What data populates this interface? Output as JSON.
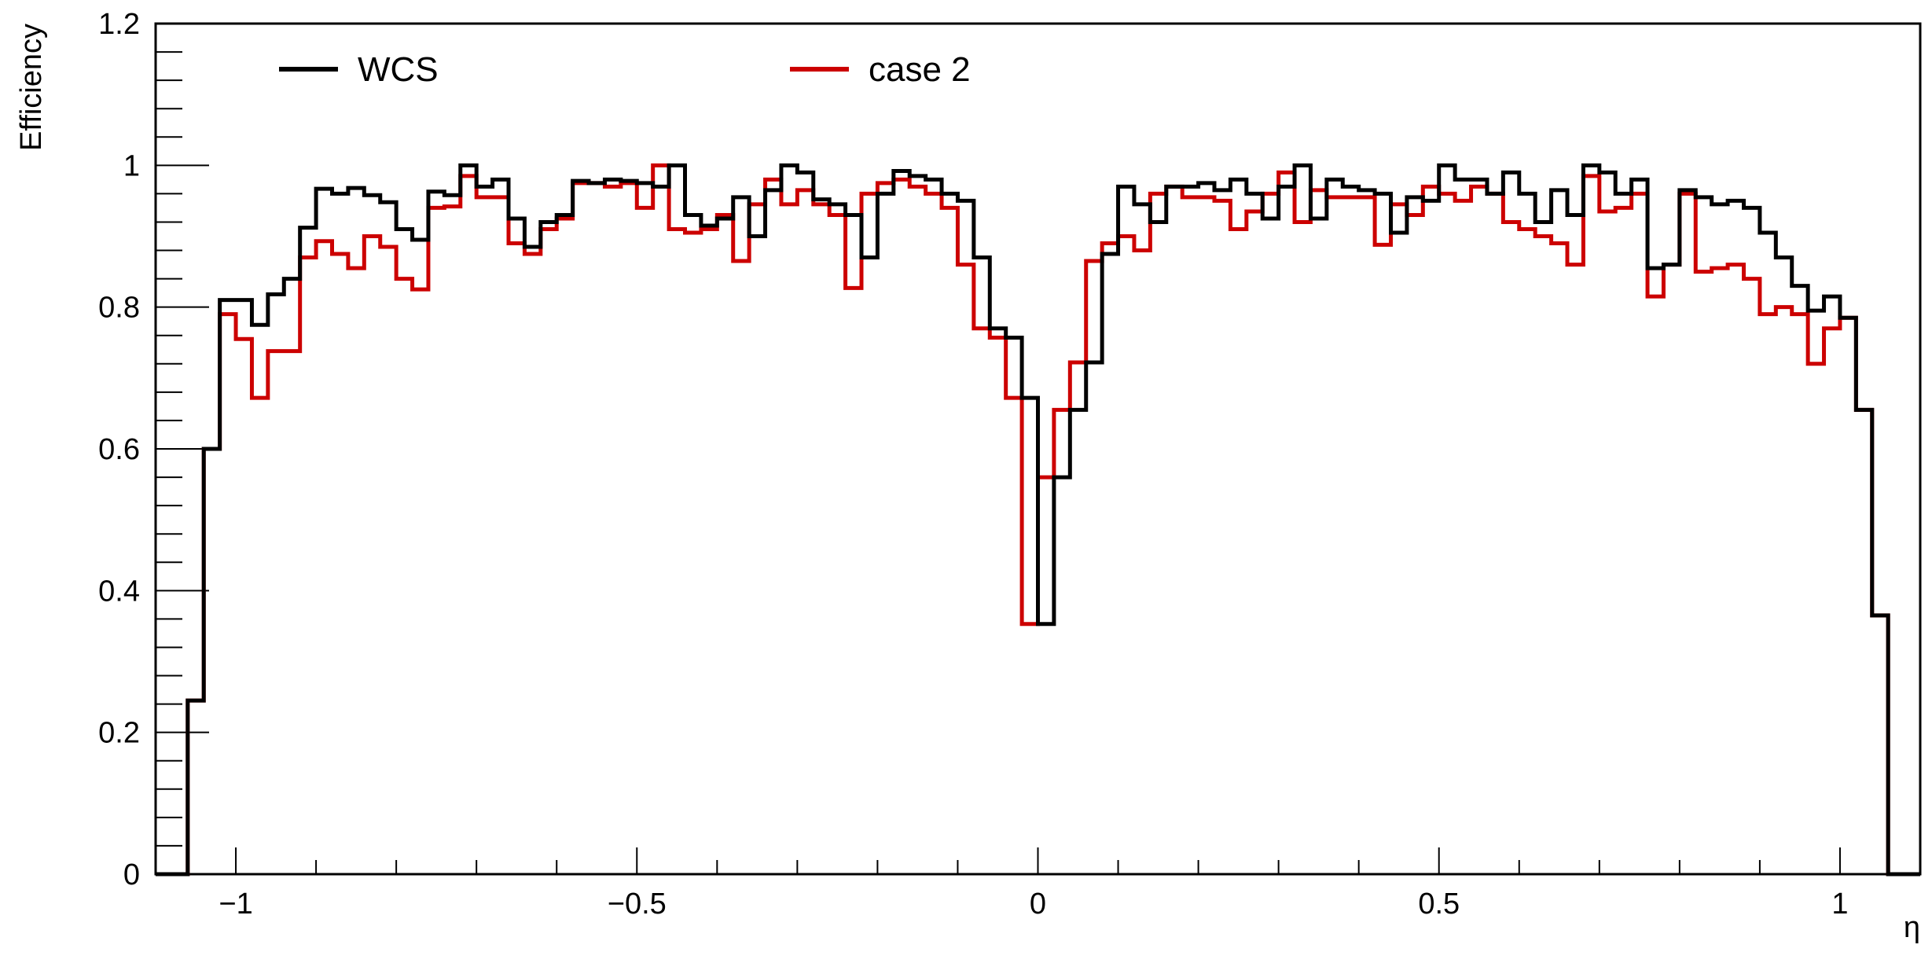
{
  "chart_data": {
    "type": "line",
    "step_histogram": true,
    "xlabel": "η",
    "ylabel": "Efficiency",
    "xlim": [
      -1.1,
      1.1
    ],
    "ylim": [
      0,
      1.2
    ],
    "x_ticks": [
      {
        "value": -1,
        "label": "−1"
      },
      {
        "value": -0.5,
        "label": "−0.5"
      },
      {
        "value": 0,
        "label": "0"
      },
      {
        "value": 0.5,
        "label": "0.5"
      },
      {
        "value": 1,
        "label": "1"
      }
    ],
    "y_ticks": [
      {
        "value": 0,
        "label": "0"
      },
      {
        "value": 0.2,
        "label": "0.2"
      },
      {
        "value": 0.4,
        "label": "0.4"
      },
      {
        "value": 0.6,
        "label": "0.6"
      },
      {
        "value": 0.8,
        "label": "0.8"
      },
      {
        "value": 1,
        "label": "1"
      },
      {
        "value": 1.2,
        "label": "1.2"
      }
    ],
    "bin_edges": [
      -1.1,
      -1.08,
      -1.06,
      -1.04,
      -1.02,
      -1.0,
      -0.98,
      -0.96,
      -0.94,
      -0.92,
      -0.9,
      -0.88,
      -0.86,
      -0.84,
      -0.82,
      -0.8,
      -0.78,
      -0.76,
      -0.74,
      -0.72,
      -0.7,
      -0.68,
      -0.66,
      -0.64,
      -0.62,
      -0.6,
      -0.58,
      -0.56,
      -0.54,
      -0.52,
      -0.5,
      -0.48,
      -0.46,
      -0.44,
      -0.42,
      -0.4,
      -0.38,
      -0.36,
      -0.34,
      -0.32,
      -0.3,
      -0.28,
      -0.26,
      -0.24,
      -0.22,
      -0.2,
      -0.18,
      -0.16,
      -0.14,
      -0.12,
      -0.1,
      -0.08,
      -0.06,
      -0.04,
      -0.02,
      0.0,
      0.02,
      0.04,
      0.06,
      0.08,
      0.1,
      0.12,
      0.14,
      0.16,
      0.18,
      0.2,
      0.22,
      0.24,
      0.26,
      0.28,
      0.3,
      0.32,
      0.34,
      0.36,
      0.38,
      0.4,
      0.42,
      0.44,
      0.46,
      0.48,
      0.5,
      0.52,
      0.54,
      0.56,
      0.58,
      0.6,
      0.62,
      0.64,
      0.66,
      0.68,
      0.7,
      0.72,
      0.74,
      0.76,
      0.78,
      0.8,
      0.82,
      0.84,
      0.86,
      0.88,
      0.9,
      0.92,
      0.94,
      0.96,
      0.98,
      1.0,
      1.02,
      1.04,
      1.06,
      1.08,
      1.1
    ],
    "series": [
      {
        "name": "WCS",
        "color": "#000000",
        "values": [
          0,
          0,
          0.245,
          0.6,
          0.81,
          0.81,
          0.775,
          0.818,
          0.84,
          0.912,
          0.967,
          0.96,
          0.968,
          0.958,
          0.948,
          0.91,
          0.895,
          0.963,
          0.958,
          1.0,
          0.97,
          0.98,
          0.925,
          0.885,
          0.92,
          0.93,
          0.978,
          0.975,
          0.98,
          0.978,
          0.975,
          0.97,
          1.0,
          0.93,
          0.915,
          0.925,
          0.955,
          0.9,
          0.965,
          1.0,
          0.99,
          0.952,
          0.945,
          0.93,
          0.87,
          0.96,
          0.992,
          0.985,
          0.98,
          0.96,
          0.95,
          0.87,
          0.77,
          0.757,
          0.672,
          0.353,
          0.56,
          0.655,
          0.722,
          0.875,
          0.97,
          0.945,
          0.92,
          0.97,
          0.97,
          0.975,
          0.965,
          0.98,
          0.96,
          0.925,
          0.97,
          1.0,
          0.925,
          0.98,
          0.97,
          0.965,
          0.96,
          0.905,
          0.955,
          0.95,
          1.0,
          0.98,
          0.98,
          0.96,
          0.99,
          0.96,
          0.92,
          0.965,
          0.93,
          1.0,
          0.99,
          0.96,
          0.98,
          0.855,
          0.86,
          0.965,
          0.955,
          0.945,
          0.95,
          0.94,
          0.905,
          0.87,
          0.83,
          0.795,
          0.815,
          0.785,
          0.655,
          0.365,
          0,
          0
        ]
      },
      {
        "name": "case 2",
        "color": "#cc0000",
        "values": [
          0,
          0,
          0.245,
          0.6,
          0.79,
          0.755,
          0.672,
          0.738,
          0.738,
          0.87,
          0.893,
          0.875,
          0.855,
          0.9,
          0.885,
          0.84,
          0.825,
          0.94,
          0.942,
          0.985,
          0.955,
          0.955,
          0.89,
          0.875,
          0.91,
          0.925,
          0.975,
          0.975,
          0.97,
          0.975,
          0.94,
          1.0,
          0.91,
          0.905,
          0.91,
          0.93,
          0.865,
          0.945,
          0.98,
          0.945,
          0.965,
          0.945,
          0.93,
          0.827,
          0.96,
          0.975,
          0.98,
          0.97,
          0.96,
          0.94,
          0.86,
          0.77,
          0.757,
          0.672,
          0.353,
          0.56,
          0.655,
          0.722,
          0.865,
          0.89,
          0.9,
          0.88,
          0.96,
          0.97,
          0.955,
          0.955,
          0.95,
          0.91,
          0.935,
          0.96,
          0.99,
          0.92,
          0.965,
          0.955,
          0.955,
          0.955,
          0.888,
          0.945,
          0.93,
          0.97,
          0.96,
          0.95,
          0.97,
          0.96,
          0.92,
          0.91,
          0.9,
          0.89,
          0.86,
          0.985,
          0.935,
          0.94,
          0.96,
          0.815,
          0.86,
          0.96,
          0.85,
          0.855,
          0.86,
          0.84,
          0.79,
          0.8,
          0.79,
          0.72,
          0.77,
          0.785,
          0.655,
          0.365,
          0,
          0
        ]
      }
    ],
    "legend": {
      "placement": "top",
      "entries": [
        {
          "label": "WCS",
          "color": "#000000"
        },
        {
          "label": "case 2",
          "color": "#cc0000"
        }
      ]
    }
  }
}
